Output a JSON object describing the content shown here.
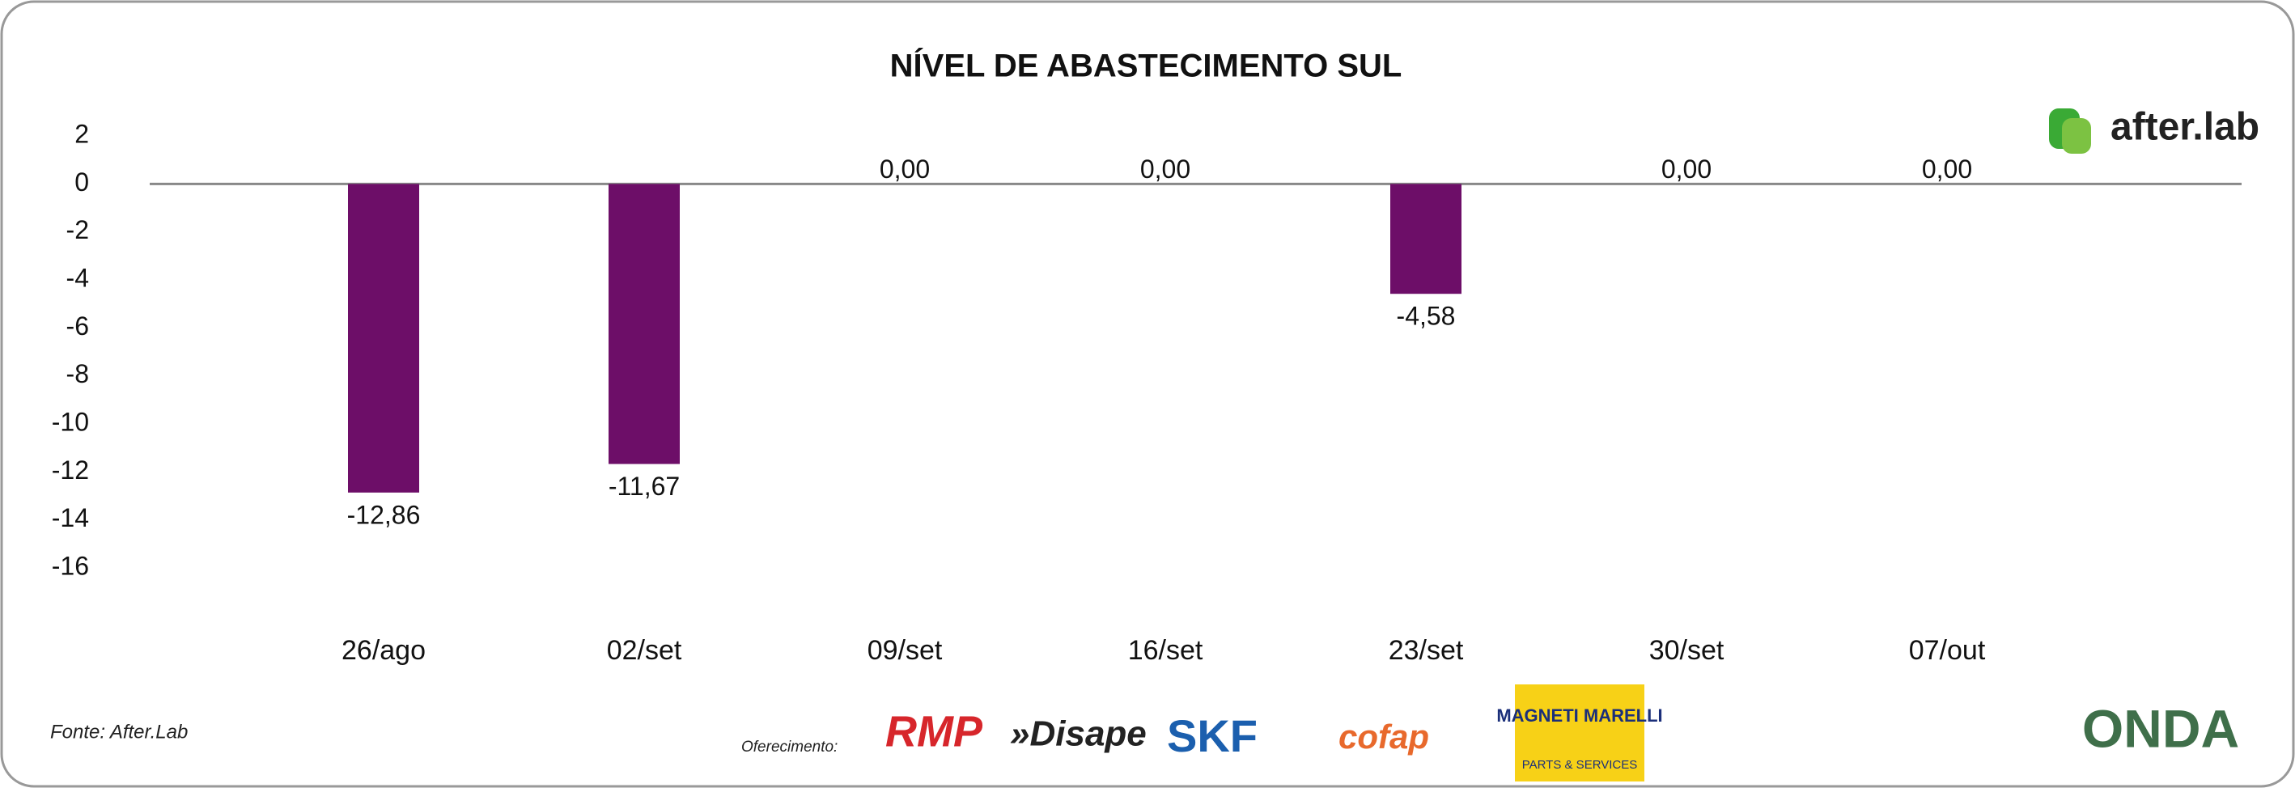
{
  "chart_data": {
    "type": "bar",
    "title": "NÍVEL DE ABASTECIMENTO SUL",
    "categories": [
      "26/ago",
      "02/set",
      "09/set",
      "16/set",
      "23/set",
      "30/set",
      "07/out"
    ],
    "values": [
      -12.86,
      -11.67,
      0,
      0,
      -4.58,
      0,
      0
    ],
    "value_labels": [
      "-12,86",
      "-11,67",
      "0,00",
      "0,00",
      "-4,58",
      "0,00",
      "0,00"
    ],
    "color": "#6d0e68",
    "ylim": [
      -16,
      2
    ],
    "yticks": [
      2,
      0,
      -2,
      -4,
      -6,
      -8,
      -10,
      -12,
      -14,
      -16
    ],
    "source": "Fonte: After.Lab"
  },
  "sponsors": {
    "label": "Oferecimento:",
    "logos": [
      "RMP",
      "»Disape",
      "SKF",
      "cofap",
      "MAGNETI MARELLI",
      "PARTS & SERVICES"
    ]
  },
  "brand": "after.lab",
  "footer_logo": "ONDA"
}
